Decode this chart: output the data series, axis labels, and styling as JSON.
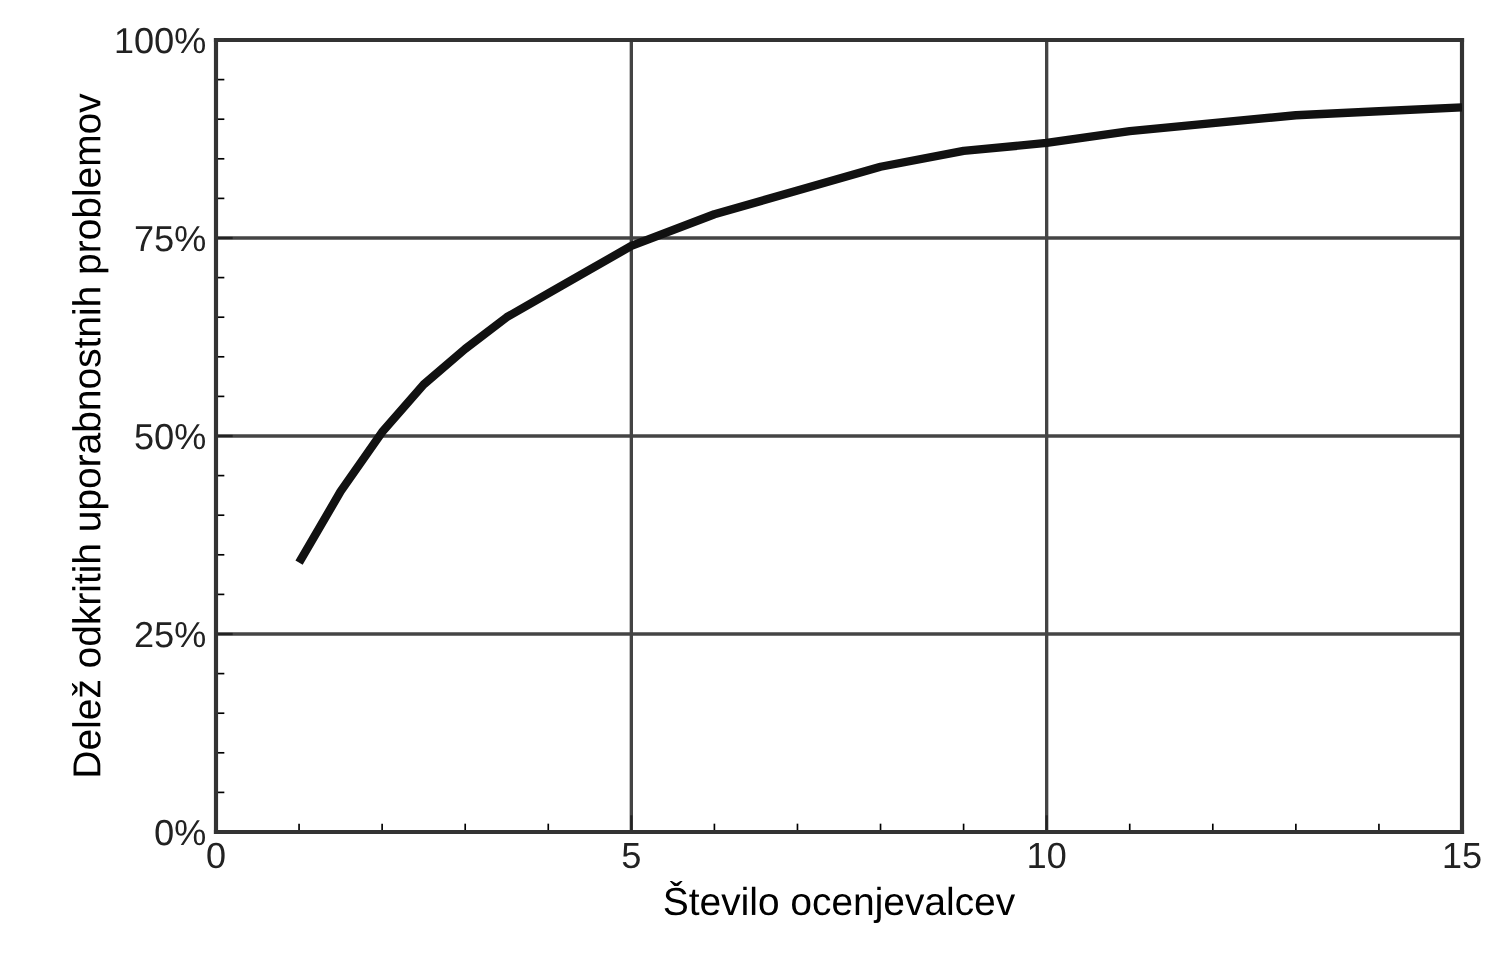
{
  "chart_data": {
    "type": "line",
    "xlabel": "Število ocenjevalcev",
    "ylabel": "Delež odkritih uporabnostnih problemov",
    "x": [
      1,
      1.5,
      2,
      2.5,
      3,
      3.5,
      4,
      4.5,
      5,
      6,
      7,
      8,
      9,
      10,
      11,
      12,
      13,
      14,
      15
    ],
    "series": [
      {
        "color": "#111111",
        "values": [
          34,
          43,
          50.5,
          56.5,
          61,
          65,
          68,
          71,
          74,
          78,
          81,
          84,
          86,
          87,
          88.5,
          89.5,
          90.5,
          91,
          91.5
        ]
      }
    ],
    "xlim": [
      0,
      15
    ],
    "xticks": [
      0,
      5,
      10,
      15
    ],
    "ylim": [
      0,
      100
    ],
    "yticks": [
      {
        "value": 0,
        "label": "0%"
      },
      {
        "value": 25,
        "label": "25%"
      },
      {
        "value": 50,
        "label": "50%"
      },
      {
        "value": 75,
        "label": "75%"
      },
      {
        "value": 100,
        "label": "100%"
      }
    ],
    "grid": true,
    "marker": "none",
    "line_style": "solid",
    "legend": false
  }
}
